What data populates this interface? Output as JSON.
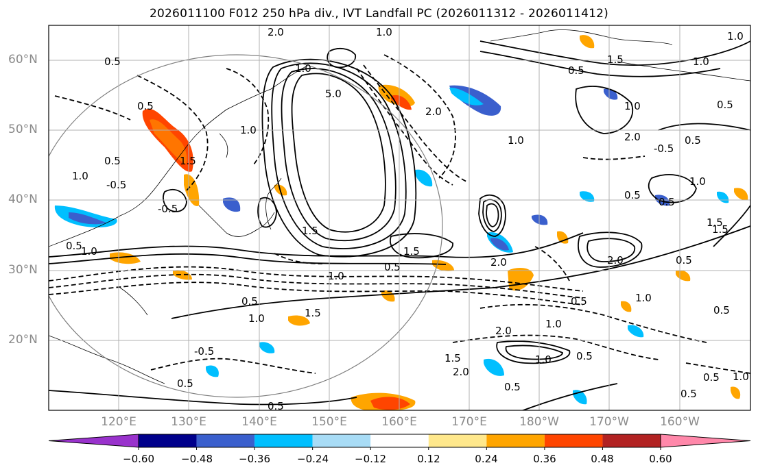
{
  "title": "2026011100 F012 250 hPa div., IVT Landfall PC (2026011312 - 2026011412)",
  "lat_labels": [
    "60°N",
    "50°N",
    "40°N",
    "30°N",
    "20°N"
  ],
  "lon_labels": [
    "120°E",
    "130°E",
    "140°E",
    "150°E",
    "160°E",
    "170°E",
    "180°W",
    "170°W",
    "160°W"
  ],
  "contour_labels": [
    "2.0",
    "1.0",
    "0.5",
    "1.0",
    "0.5",
    "1.5",
    "1.0",
    "5.0",
    "0.5",
    "0.5",
    "1.0",
    "1.0",
    "-0.5",
    "0.5",
    "1.5",
    "2.0",
    "1.0",
    "0.5",
    "1.5",
    "2.0",
    "-0.5",
    "0.5",
    "1.0",
    "0.5",
    "0.5",
    "1.0",
    "0.5",
    "1.5",
    "1.0",
    "2.0",
    "0.5",
    "1.0",
    "0.5",
    "-0.5",
    "0.5",
    "1.0",
    "0.5",
    "1.0",
    "0.5",
    "0.5",
    "2.0",
    "1.0",
    "1.5",
    "0.5",
    "1.5",
    "2.0",
    "1.0",
    "0.5",
    "1.5",
    "-0.5",
    "1.5",
    "2.0",
    "1.0",
    "0.5",
    "1.0",
    "0.5"
  ],
  "colorbar": {
    "tick_labels": [
      "−0.60",
      "−0.48",
      "−0.36",
      "−0.24",
      "−0.12",
      "0.12",
      "0.24",
      "0.36",
      "0.48",
      "0.60"
    ],
    "colors": [
      "#9932cc",
      "#00008b",
      "#3a5fcd",
      "#00bfff",
      "#a8dcf6",
      "#ffffff",
      "#ffe88c",
      "#ffa500",
      "#ff4500",
      "#b22222",
      "#ff88aa"
    ]
  },
  "colors": {
    "frame": "#000000",
    "grid": "#b0b0b0",
    "coast": "#000000",
    "label_gray": "#8a8a8a",
    "circle": "#808080"
  }
}
